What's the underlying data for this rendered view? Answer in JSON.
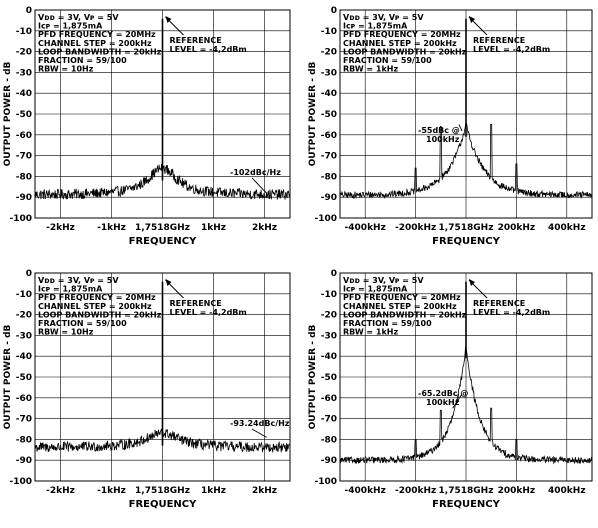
{
  "chart_data": [
    {
      "type": "line",
      "title": "",
      "xlabel": "FREQUENCY",
      "ylabel": "OUTPUT POWER - dB",
      "ylim": [
        -100,
        0
      ],
      "yticks": [
        0,
        -10,
        -20,
        -30,
        -40,
        -50,
        -60,
        -70,
        -80,
        -90,
        -100
      ],
      "xlim": [
        -2.5,
        2.5
      ],
      "x_unit": "kHz",
      "xticks": [
        {
          "value": -2,
          "label": "-2kHz"
        },
        {
          "value": -1,
          "label": "-1kHz"
        },
        {
          "value": 0,
          "label": "1,7518GHz"
        },
        {
          "value": 1,
          "label": "1kHz"
        },
        {
          "value": 2,
          "label": "2kHz"
        }
      ],
      "grid": true,
      "params": [
        "Vᴅᴅ = 3V, Vᴘ = 5V",
        "Iᴄᴘ = 1,875mA",
        "PFD FREQUENCY = 20MHz",
        "CHANNEL STEP = 200kHz",
        "LOOP BANDWIDTH = 20kHz",
        "FRACTION = 59/100",
        "RBW = 10Hz"
      ],
      "reference": [
        "REFERENCE",
        "LEVEL = -4,2dBm"
      ],
      "annotation": {
        "text": "-102dBc/Hz",
        "x": 2.0,
        "y": -89
      },
      "spectrum": {
        "carrier_x": 0,
        "carrier_peak": -4.2,
        "floor": -89,
        "noise": 2.5,
        "skirt_height": 13,
        "skirt_width": 0.35,
        "skirt_shape": "lorentz",
        "spurs": []
      }
    },
    {
      "type": "line",
      "title": "",
      "xlabel": "FREQUENCY",
      "ylabel": "OUTPUT POWER - dB",
      "ylim": [
        -100,
        0
      ],
      "yticks": [
        0,
        -10,
        -20,
        -30,
        -40,
        -50,
        -60,
        -70,
        -80,
        -90,
        -100
      ],
      "xlim": [
        -500,
        500
      ],
      "x_unit": "kHz",
      "xticks": [
        {
          "value": -400,
          "label": "-400kHz"
        },
        {
          "value": -200,
          "label": "-200kHz"
        },
        {
          "value": 0,
          "label": "1,7518GHz"
        },
        {
          "value": 200,
          "label": "200kHz"
        },
        {
          "value": 400,
          "label": "400kHz"
        }
      ],
      "grid": true,
      "params": [
        "Vᴅᴅ = 3V, Vᴘ = 5V",
        "Iᴄᴘ = 1,875mA",
        "PFD FREQUENCY = 20MHz",
        "CHANNEL STEP = 200kHz",
        "LOOP BANDWIDTH = 20kHz",
        "FRACTION = 59/100",
        "RBW = 1kHz"
      ],
      "reference": [
        "REFERENCE",
        "LEVEL = -4,2dBm"
      ],
      "annotation": {
        "text": [
          "-55dBc @",
          "100kHz"
        ],
        "x": -20,
        "y": -55
      },
      "spectrum": {
        "carrier_x": 0,
        "carrier_peak": -4.2,
        "floor": -89,
        "noise": 1.6,
        "skirt_height": 34,
        "skirt_width": 70,
        "skirt_shape": "exp",
        "spurs": [
          {
            "x": 100,
            "y": -55
          },
          {
            "x": -100,
            "y": -56
          },
          {
            "x": 200,
            "y": -74
          },
          {
            "x": -200,
            "y": -76
          }
        ]
      }
    },
    {
      "type": "line",
      "title": "",
      "xlabel": "FREQUENCY",
      "ylabel": "OUTPUT POWER - dB",
      "ylim": [
        -100,
        0
      ],
      "yticks": [
        0,
        -10,
        -20,
        -30,
        -40,
        -50,
        -60,
        -70,
        -80,
        -90,
        -100
      ],
      "xlim": [
        -2.5,
        2.5
      ],
      "x_unit": "kHz",
      "xticks": [
        {
          "value": -2,
          "label": "-2kHz"
        },
        {
          "value": -1,
          "label": "-1kHz"
        },
        {
          "value": 0,
          "label": "1,7518GHz"
        },
        {
          "value": 1,
          "label": "1kHz"
        },
        {
          "value": 2,
          "label": "2kHz"
        }
      ],
      "grid": true,
      "params": [
        "Vᴅᴅ = 3V, Vᴘ = 5V",
        "Iᴄᴘ = 1,875mA",
        "PFD FREQUENCY = 20MHz",
        "CHANNEL STEP = 200kHz",
        "LOOP BANDWIDTH = 20kHz",
        "FRACTION = 59/100",
        "RBW = 10Hz"
      ],
      "reference": [
        "REFERENCE",
        "LEVEL = -4,2dBm"
      ],
      "annotation": {
        "text": "-93.24dBc/Hz",
        "x": 2.0,
        "y": -80
      },
      "spectrum": {
        "carrier_x": 0,
        "carrier_peak": -4.2,
        "floor": -84,
        "noise": 2.5,
        "skirt_height": 7,
        "skirt_width": 0.4,
        "skirt_shape": "lorentz",
        "spurs": []
      }
    },
    {
      "type": "line",
      "title": "",
      "xlabel": "FREQUENCY",
      "ylabel": "OUTPUT POWER - dB",
      "ylim": [
        -100,
        0
      ],
      "yticks": [
        0,
        -10,
        -20,
        -30,
        -40,
        -50,
        -60,
        -70,
        -80,
        -90,
        -100
      ],
      "xlim": [
        -500,
        500
      ],
      "x_unit": "kHz",
      "xticks": [
        {
          "value": -400,
          "label": "-400kHz"
        },
        {
          "value": -200,
          "label": "-200kHz"
        },
        {
          "value": 0,
          "label": "1,7518GHz"
        },
        {
          "value": 200,
          "label": "200kHz"
        },
        {
          "value": 400,
          "label": "400kHz"
        }
      ],
      "grid": true,
      "params": [
        "Vᴅᴅ = 3V, Vᴘ = 5V",
        "Iᴄᴘ = 1,875mA",
        "PFD FREQUENCY = 20MHz",
        "CHANNEL STEP = 200kHz",
        "LOOP BANDWIDTH = 20kHz",
        "FRACTION = 59/100",
        "RBW = 1kHz"
      ],
      "reference": [
        "REFERENCE",
        "LEVEL = -4,2dBm"
      ],
      "annotation": {
        "text": [
          "-65.2dBc @",
          "100kHz"
        ],
        "x": -45,
        "y": -65
      },
      "spectrum": {
        "carrier_x": 0,
        "carrier_peak": -4.2,
        "floor": -90,
        "noise": 1.6,
        "skirt_height": 55,
        "skirt_width": 55,
        "skirt_shape": "exp",
        "spurs": [
          {
            "x": 100,
            "y": -65
          },
          {
            "x": -100,
            "y": -66
          },
          {
            "x": 200,
            "y": -80
          },
          {
            "x": -200,
            "y": -80
          }
        ]
      }
    }
  ],
  "colors": {
    "trace": "#000000",
    "grid": "#000000",
    "axis": "#000000"
  }
}
